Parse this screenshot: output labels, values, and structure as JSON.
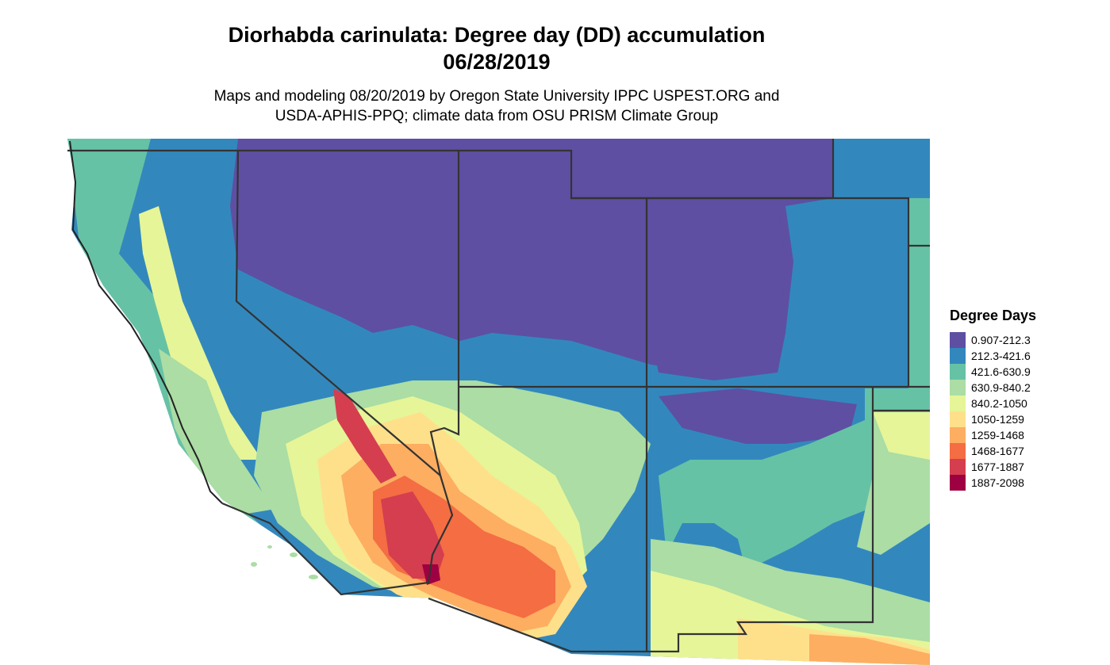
{
  "title": "Diorhabda carinulata: Degree day (DD) accumulation",
  "date": "06/28/2019",
  "subtitle_line1": "Maps and modeling 08/20/2019 by Oregon State University IPPC USPEST.ORG and",
  "subtitle_line2": "USDA-APHIS-PPQ; climate data from OSU PRISM Climate Group",
  "legend": {
    "title": "Degree Days",
    "items": [
      {
        "label": "0.907-212.3",
        "color": "#5E4FA2"
      },
      {
        "label": "212.3-421.6",
        "color": "#3288BD"
      },
      {
        "label": "421.6-630.9",
        "color": "#66C2A5"
      },
      {
        "label": "630.9-840.2",
        "color": "#ABDDA4"
      },
      {
        "label": "840.2-1050",
        "color": "#E6F598"
      },
      {
        "label": "1050-1259",
        "color": "#FEE08B"
      },
      {
        "label": "1259-1468",
        "color": "#FDAE61"
      },
      {
        "label": "1468-1677",
        "color": "#F46D43"
      },
      {
        "label": "1677-1887",
        "color": "#D53E4F"
      },
      {
        "label": "1887-2098",
        "color": "#9E0142"
      }
    ]
  }
}
